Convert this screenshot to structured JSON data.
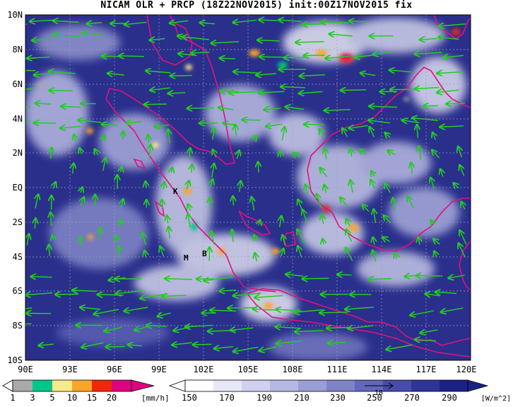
{
  "title": "NICAM OLR + PRCP (18Z22NOV2015) init:00Z17NOV2015 fix",
  "map": {
    "lon_range": [
      90,
      120
    ],
    "lat_range": [
      -10,
      10
    ],
    "lat_labels": [
      "10N",
      "8N",
      "6N",
      "4N",
      "2N",
      "EQ",
      "2S",
      "4S",
      "6S",
      "8S",
      "10S"
    ],
    "lon_labels": [
      "90E",
      "93E",
      "96E",
      "99E",
      "102E",
      "105E",
      "108E",
      "111E",
      "114E",
      "117E",
      "120E"
    ],
    "station_labels": [
      "K",
      "M",
      "B"
    ],
    "colors": {
      "ocean_dark": "#2a2f8c",
      "cloud": "#e8e9f6",
      "coast": "#e0117f",
      "wind": "#22cc22"
    }
  },
  "legend_prcp": {
    "ticks": [
      "1",
      "3",
      "5",
      "10",
      "15",
      "20"
    ],
    "unit": "[mm/h]",
    "colors": [
      "#a9a9a9",
      "#00c688",
      "#fde98a",
      "#fba62b",
      "#f3260c",
      "#e00080"
    ]
  },
  "legend_olr": {
    "ticks": [
      "150",
      "170",
      "190",
      "210",
      "230",
      "250",
      "270",
      "290"
    ],
    "unit": "[W/m^2]",
    "vector_ref": "10",
    "colors": [
      "#ffffff",
      "#e7e8f7",
      "#cfd1ee",
      "#b5b8e2",
      "#9a9ed6",
      "#7e82c6",
      "#6267b8",
      "#474ca8",
      "#2f3497",
      "#1c2283"
    ]
  }
}
